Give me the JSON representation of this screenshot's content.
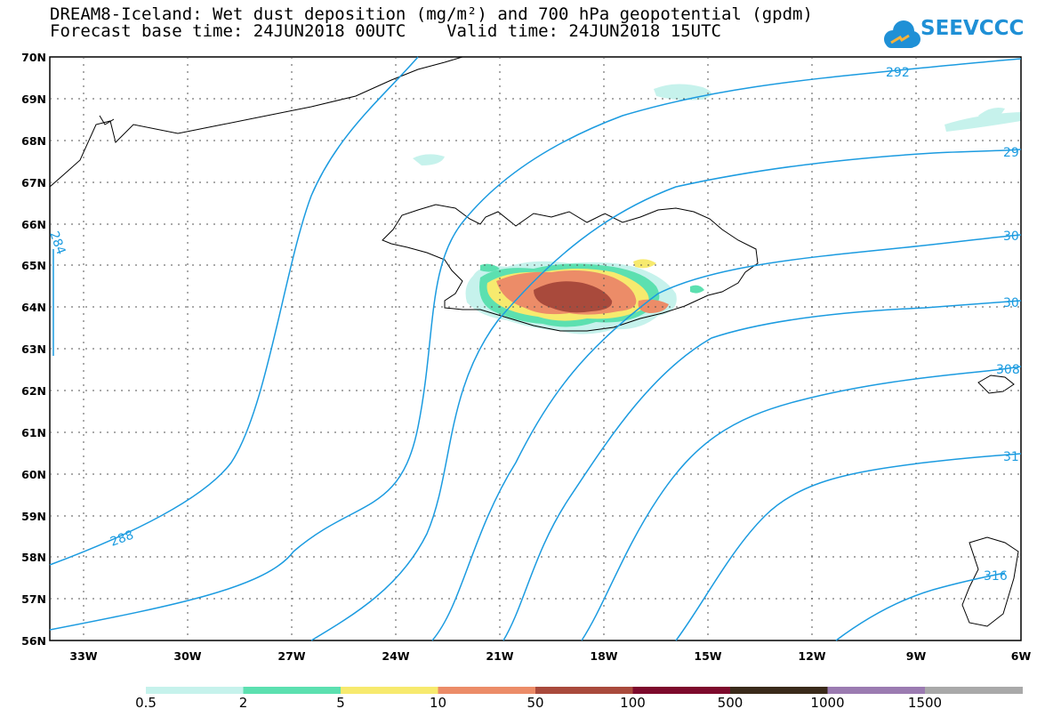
{
  "title": {
    "line1": "DREAM8-Iceland: Wet dust deposition (mg/m²) and 700 hPa geopotential (gpdm)",
    "line2": "Forecast base time: 24JUN2018 00UTC    Valid time: 24JUN2018 15UTC"
  },
  "logo": {
    "text": "SEEVCCC",
    "icon": "cloud-icon",
    "color": "#1f90d6"
  },
  "map": {
    "lat_labels": [
      "70N",
      "69N",
      "68N",
      "67N",
      "66N",
      "65N",
      "64N",
      "63N",
      "62N",
      "61N",
      "60N",
      "59N",
      "58N",
      "57N",
      "56N"
    ],
    "lon_labels": [
      "33W",
      "30W",
      "27W",
      "24W",
      "21W",
      "18W",
      "15W",
      "12W",
      "9W",
      "6W"
    ],
    "contour_color": "#1b9be0",
    "contour_labels": [
      "292",
      "29",
      "30",
      "30",
      "308",
      "31",
      "316",
      "288",
      "284"
    ]
  },
  "legend": {
    "labels": [
      "0.5",
      "2",
      "5",
      "10",
      "50",
      "100",
      "500",
      "1000",
      "1500"
    ],
    "colors": [
      "#c6f2ec",
      "#5ce0b0",
      "#f7ea6e",
      "#ec8c68",
      "#a94a3c",
      "#7d0a2c",
      "#3a2a1a",
      "#9b7bb1",
      "#a9a9a9"
    ]
  }
}
